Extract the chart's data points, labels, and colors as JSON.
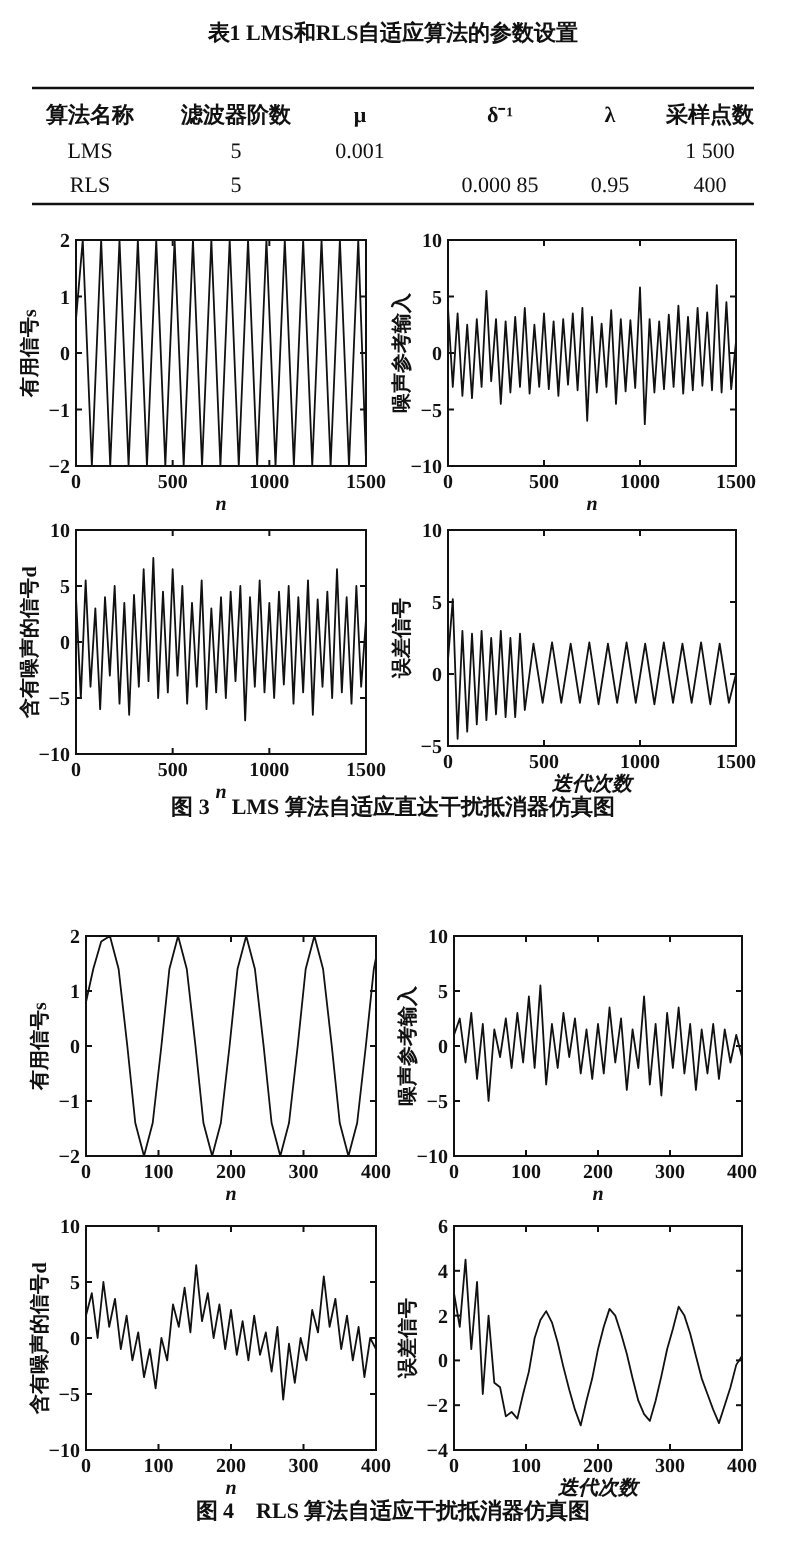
{
  "chart_data": [
    {
      "type": "other",
      "title": "表1 LMS和RLS自适应算法的参数设置",
      "annotations": [
        "算法名称",
        "滤波器阶数",
        "μ",
        "δ⁻¹",
        "λ",
        "采样点数",
        "LMS",
        "5",
        "0.001",
        "1 500",
        "RLS",
        "5",
        "0.000 85",
        "0.95",
        "400"
      ]
    },
    {
      "type": "line",
      "xlabel": "n",
      "ylabel": "有用信号s",
      "color": "#111111",
      "xlim": [
        0,
        1500
      ],
      "ylim": [
        -2,
        2
      ],
      "xticks": [
        0,
        500,
        1000,
        1500
      ],
      "yticks": [
        -2,
        -1,
        0,
        1,
        2
      ],
      "x": [
        0,
        35,
        82,
        130,
        177,
        225,
        272,
        320,
        367,
        415,
        462,
        510,
        557,
        605,
        652,
        700,
        747,
        795,
        842,
        890,
        937,
        985,
        1032,
        1080,
        1127,
        1175,
        1222,
        1270,
        1317,
        1365,
        1412,
        1460,
        1500
      ],
      "values": [
        0.6,
        2,
        -2,
        2,
        -2,
        2,
        -2,
        2,
        -2,
        2,
        -2,
        2,
        -2,
        2,
        -2,
        2,
        -2,
        2,
        -2,
        2,
        -2,
        2,
        -2,
        2,
        -2,
        2,
        -2,
        2,
        -2,
        2,
        -2,
        2,
        -1.9
      ]
    },
    {
      "type": "line",
      "xlabel": "n",
      "ylabel": "噪声参考输入",
      "color": "#111111",
      "xlim": [
        0,
        1500
      ],
      "ylim": [
        -10,
        10
      ],
      "xticks": [
        0,
        500,
        1000,
        1500
      ],
      "yticks": [
        -10,
        -5,
        0,
        5,
        10
      ],
      "x": [
        0,
        25,
        50,
        75,
        100,
        125,
        150,
        175,
        200,
        225,
        250,
        275,
        300,
        325,
        350,
        375,
        400,
        425,
        450,
        475,
        500,
        525,
        550,
        575,
        600,
        625,
        650,
        675,
        700,
        725,
        750,
        775,
        800,
        825,
        850,
        875,
        900,
        925,
        950,
        975,
        1000,
        1025,
        1050,
        1075,
        1100,
        1125,
        1150,
        1175,
        1200,
        1225,
        1250,
        1275,
        1300,
        1325,
        1350,
        1375,
        1400,
        1425,
        1450,
        1475,
        1500
      ],
      "values": [
        4,
        -3,
        3.5,
        -3.8,
        2.5,
        -4,
        3,
        -3,
        5.5,
        -2.5,
        3,
        -4.5,
        2.8,
        -3.5,
        3.2,
        -3,
        4,
        -3.6,
        2.5,
        -3,
        3.5,
        -3.2,
        2.8,
        -3.8,
        3,
        -2.8,
        3.5,
        -3.3,
        4,
        -6,
        3.2,
        -3.5,
        2.6,
        -3,
        3.8,
        -4.5,
        3,
        -3.4,
        2.9,
        -3.1,
        5.8,
        -6.3,
        3,
        -3.5,
        2.8,
        -3.2,
        3.4,
        -3,
        4.2,
        -3.6,
        3.2,
        -3.3,
        4,
        -2.9,
        3.6,
        -3.3,
        6,
        -3.5,
        4.5,
        -3.2,
        1
      ]
    },
    {
      "type": "line",
      "xlabel": "n",
      "ylabel": "含有噪声的信号d",
      "color": "#111111",
      "xlim": [
        0,
        1500
      ],
      "ylim": [
        -10,
        10
      ],
      "xticks": [
        0,
        500,
        1000,
        1500
      ],
      "yticks": [
        -10,
        -5,
        0,
        5,
        10
      ],
      "x": [
        0,
        25,
        50,
        75,
        100,
        125,
        150,
        175,
        200,
        225,
        250,
        275,
        300,
        325,
        350,
        375,
        400,
        425,
        450,
        475,
        500,
        525,
        550,
        575,
        600,
        625,
        650,
        675,
        700,
        725,
        750,
        775,
        800,
        825,
        850,
        875,
        900,
        925,
        950,
        975,
        1000,
        1025,
        1050,
        1075,
        1100,
        1125,
        1150,
        1175,
        1200,
        1225,
        1250,
        1275,
        1300,
        1325,
        1350,
        1375,
        1400,
        1425,
        1450,
        1475,
        1500
      ],
      "values": [
        4,
        -5,
        5.5,
        -4,
        3,
        -6,
        4,
        -3,
        5,
        -5.5,
        3.5,
        -6.5,
        4.2,
        -4,
        6.5,
        -3.5,
        7.5,
        -5,
        4.5,
        -4.5,
        6.5,
        -3,
        5,
        -5.5,
        3.5,
        -4,
        5.5,
        -6,
        3,
        -4.5,
        4,
        -5,
        4.5,
        -3.5,
        5,
        -7,
        4,
        -4,
        5.5,
        -4.5,
        3.5,
        -5,
        4.5,
        -3.8,
        5,
        -5.5,
        4,
        -4.5,
        5.5,
        -6.5,
        3.8,
        -4,
        4.5,
        -5,
        6.5,
        -4.5,
        4,
        -5.5,
        5,
        -4,
        2
      ]
    },
    {
      "type": "line",
      "xlabel": "迭代次数",
      "ylabel": "误差信号",
      "color": "#111111",
      "xlim": [
        0,
        1500
      ],
      "ylim": [
        -5,
        10
      ],
      "xticks": [
        0,
        500,
        1000,
        1500
      ],
      "yticks": [
        -5,
        0,
        5,
        10
      ],
      "x": [
        0,
        25,
        50,
        75,
        100,
        125,
        150,
        175,
        200,
        225,
        250,
        275,
        300,
        325,
        350,
        375,
        400,
        445,
        493,
        542,
        590,
        639,
        687,
        736,
        784,
        833,
        881,
        930,
        978,
        1027,
        1075,
        1124,
        1172,
        1221,
        1269,
        1318,
        1366,
        1415,
        1463,
        1500
      ],
      "values": [
        1,
        5.2,
        -4.5,
        3,
        -4,
        2.8,
        -3.5,
        3,
        -3.2,
        2.5,
        -2.8,
        3,
        -3,
        2.5,
        -3,
        2.8,
        -2.5,
        2.1,
        -2,
        2.2,
        -2,
        2.1,
        -2,
        2.2,
        -2.1,
        2.1,
        -2,
        2.2,
        -2,
        2.1,
        -2.1,
        2.2,
        -2,
        2.1,
        -2,
        2.2,
        -2.1,
        2.1,
        -2,
        0
      ],
      "annotations": [
        "图 3　LMS 算法自适应直达干扰抵消器仿真图"
      ]
    },
    {
      "type": "line",
      "xlabel": "n",
      "ylabel": "有用信号s",
      "color": "#111111",
      "xlim": [
        0,
        400
      ],
      "ylim": [
        -2,
        2
      ],
      "xticks": [
        0,
        100,
        200,
        300,
        400
      ],
      "yticks": [
        -2,
        -1,
        0,
        1,
        2
      ],
      "x": [
        0,
        10,
        21,
        33,
        45,
        57,
        68,
        80,
        92,
        104,
        115,
        127,
        139,
        151,
        162,
        174,
        186,
        198,
        209,
        221,
        233,
        245,
        256,
        268,
        280,
        292,
        303,
        315,
        327,
        339,
        350,
        362,
        374,
        386,
        397,
        400
      ],
      "values": [
        0.8,
        1.4,
        1.9,
        2,
        1.4,
        0,
        -1.4,
        -2,
        -1.4,
        0,
        1.4,
        2,
        1.4,
        0,
        -1.4,
        -2,
        -1.4,
        0,
        1.4,
        2,
        1.4,
        0,
        -1.4,
        -2,
        -1.4,
        0,
        1.4,
        2,
        1.4,
        0,
        -1.4,
        -2,
        -1.4,
        0,
        1.4,
        1.6
      ]
    },
    {
      "type": "line",
      "xlabel": "n",
      "ylabel": "噪声参考输入",
      "color": "#111111",
      "xlim": [
        0,
        400
      ],
      "ylim": [
        -10,
        10
      ],
      "xticks": [
        0,
        100,
        200,
        300,
        400
      ],
      "yticks": [
        -10,
        -5,
        0,
        5,
        10
      ],
      "x": [
        0,
        8,
        16,
        24,
        32,
        40,
        48,
        56,
        64,
        72,
        80,
        88,
        96,
        104,
        112,
        120,
        128,
        136,
        144,
        152,
        160,
        168,
        176,
        184,
        192,
        200,
        208,
        216,
        224,
        232,
        240,
        248,
        256,
        264,
        272,
        280,
        288,
        296,
        304,
        312,
        320,
        328,
        336,
        344,
        352,
        360,
        368,
        376,
        384,
        392,
        400
      ],
      "values": [
        1,
        2.5,
        -1.5,
        3,
        -3,
        2,
        -5,
        1.5,
        -1,
        2.5,
        -2,
        3,
        -1.5,
        4.5,
        -2,
        5.5,
        -3.5,
        2,
        -2,
        3,
        -1,
        2.5,
        -2.5,
        1.5,
        -3,
        2,
        -2.5,
        3.5,
        -1.5,
        2.5,
        -4,
        1.5,
        -2,
        4.5,
        -3.5,
        2,
        -4.5,
        3,
        -2,
        3.5,
        -2.5,
        2,
        -4,
        1.5,
        -2.5,
        2,
        -3,
        1.5,
        -1.5,
        1,
        -1
      ]
    },
    {
      "type": "line",
      "xlabel": "n",
      "ylabel": "含有噪声的信号d",
      "color": "#111111",
      "xlim": [
        0,
        400
      ],
      "ylim": [
        -10,
        10
      ],
      "xticks": [
        0,
        100,
        200,
        300,
        400
      ],
      "yticks": [
        -10,
        -5,
        0,
        5,
        10
      ],
      "x": [
        0,
        8,
        16,
        24,
        32,
        40,
        48,
        56,
        64,
        72,
        80,
        88,
        96,
        104,
        112,
        120,
        128,
        136,
        144,
        152,
        160,
        168,
        176,
        184,
        192,
        200,
        208,
        216,
        224,
        232,
        240,
        248,
        256,
        264,
        272,
        280,
        288,
        296,
        304,
        312,
        320,
        328,
        336,
        344,
        352,
        360,
        368,
        376,
        384,
        392,
        400
      ],
      "values": [
        2,
        4,
        0,
        5,
        1,
        3.5,
        -1,
        2,
        -2,
        0.5,
        -3.5,
        -1,
        -4.5,
        0,
        -2,
        3,
        1,
        4.5,
        0.5,
        6.5,
        1.5,
        4,
        0,
        3,
        -1,
        2.5,
        -1.5,
        1.5,
        -2,
        2,
        -1.5,
        0.5,
        -3,
        1,
        -5.5,
        -0.5,
        -4,
        0,
        -2,
        2.5,
        0.5,
        5.5,
        1,
        3.5,
        -1,
        2,
        -2,
        1,
        -3.5,
        0,
        -1
      ]
    },
    {
      "type": "line",
      "xlabel": "迭代次数",
      "ylabel": "误差信号",
      "color": "#111111",
      "xlim": [
        0,
        400
      ],
      "ylim": [
        -4,
        6
      ],
      "xticks": [
        0,
        100,
        200,
        300,
        400
      ],
      "yticks": [
        -4,
        -2,
        0,
        2,
        4,
        6
      ],
      "x": [
        0,
        8,
        16,
        24,
        32,
        40,
        48,
        56,
        64,
        72,
        80,
        88,
        96,
        104,
        112,
        120,
        128,
        136,
        144,
        152,
        160,
        168,
        176,
        184,
        192,
        200,
        208,
        216,
        224,
        232,
        240,
        248,
        256,
        264,
        272,
        280,
        288,
        296,
        304,
        312,
        320,
        328,
        336,
        344,
        352,
        360,
        368,
        376,
        384,
        392,
        400
      ],
      "values": [
        3,
        1.5,
        4.5,
        0.5,
        3.5,
        -1.5,
        2,
        -1,
        -1.2,
        -2.5,
        -2.3,
        -2.6,
        -1.5,
        -0.5,
        1,
        1.8,
        2.2,
        1.7,
        0.8,
        -0.3,
        -1.3,
        -2.2,
        -2.9,
        -1.8,
        -0.8,
        0.5,
        1.5,
        2.3,
        2,
        1.2,
        0.3,
        -0.8,
        -1.8,
        -2.4,
        -2.7,
        -1.8,
        -0.7,
        0.5,
        1.4,
        2.4,
        2,
        1.2,
        0.2,
        -0.8,
        -1.5,
        -2.2,
        -2.8,
        -2,
        -1.2,
        -0.2,
        0.2
      ],
      "annotations": [
        "图 4　RLS 算法自适应干扰抵消器仿真图"
      ]
    }
  ]
}
